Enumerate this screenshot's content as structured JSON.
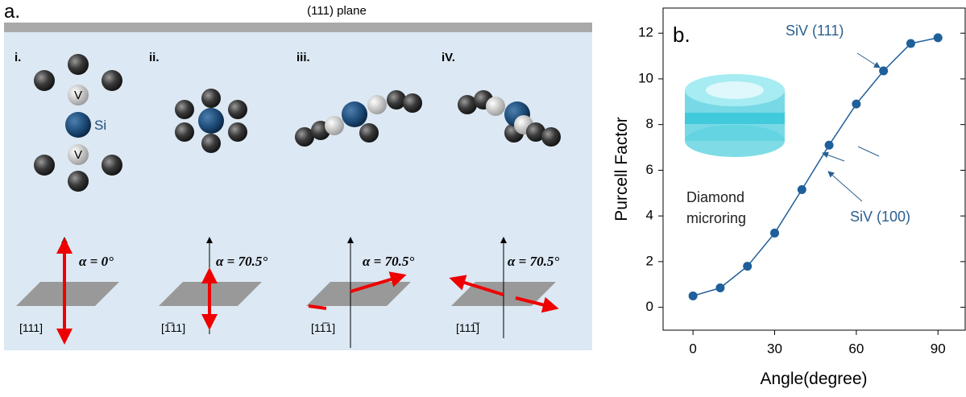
{
  "panel_a": {
    "label": "a.",
    "title": "(111) plane",
    "atom_labels": [
      "V",
      "Si",
      "V"
    ],
    "configurations": [
      {
        "label": "i.",
        "angle": "α = 0°",
        "direction": "[111]"
      },
      {
        "label": "ii.",
        "angle": "α = 70.5°",
        "direction": "[1̅11]"
      },
      {
        "label": "iii.",
        "angle": "α = 70.5°",
        "direction": "[11̅1]"
      },
      {
        "label": "iV.",
        "angle": "α = 70.5°",
        "direction": "[111̅]"
      }
    ]
  },
  "chart_data": {
    "type": "line",
    "xlabel": "Angle(degree)",
    "ylabel": "Purcell Factor",
    "annotations": [
      "b.",
      "SiV (111)",
      "SiV (100)",
      "Diamond microring"
    ],
    "x": [
      0,
      10,
      20,
      30,
      40,
      50,
      60,
      70,
      80,
      90
    ],
    "series": [
      {
        "name": "Purcell Factor",
        "color": "#1f5f9a",
        "values": [
          0.5,
          0.85,
          1.8,
          3.25,
          5.15,
          7.1,
          8.9,
          10.35,
          11.55,
          11.8
        ]
      }
    ],
    "xlim": [
      -11,
      100
    ],
    "ylim": [
      -1,
      13.1
    ],
    "xticks": [
      0,
      30,
      60,
      90
    ],
    "yticks": [
      0,
      2,
      4,
      6,
      8,
      10,
      12
    ]
  }
}
